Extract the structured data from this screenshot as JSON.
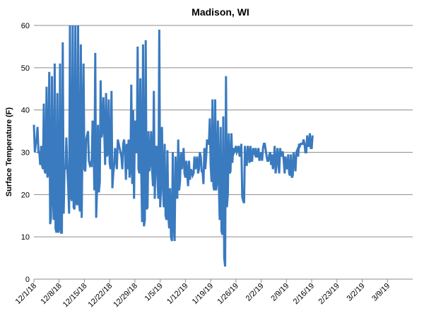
{
  "chart_data": {
    "type": "line",
    "title": "Madison, WI",
    "ylabel": "Surface Temperature (F)",
    "xlabel": "",
    "ylim": [
      0,
      60
    ],
    "yticks": [
      0,
      10,
      20,
      30,
      40,
      50,
      60
    ],
    "xlim": [
      "12/1/18",
      "3/15/19"
    ],
    "xticks": [
      "12/1/18",
      "12/8/18",
      "12/15/18",
      "12/22/18",
      "12/29/18",
      "1/5/19",
      "1/12/19",
      "1/19/19",
      "1/26/19",
      "2/2/19",
      "2/9/19",
      "2/16/19",
      "2/23/19",
      "3/2/19",
      "3/9/19"
    ],
    "grid": true,
    "legend": "none",
    "colors": {
      "series": "#3a7abf",
      "grid": "#8c8c8c"
    },
    "series": [
      {
        "name": "",
        "step": "1/4 day",
        "values": [
          36.5,
          30,
          32,
          33,
          36,
          30,
          30,
          27,
          31.5,
          27,
          26,
          41.5,
          25.5,
          25,
          45.5,
          24,
          25.5,
          49,
          13,
          14.5,
          48,
          20,
          14,
          51,
          12,
          11,
          44,
          11,
          12,
          51,
          11,
          11,
          56,
          15.5,
          26.5,
          26,
          33.5,
          26,
          22,
          15.5,
          60,
          19.5,
          18.5,
          60,
          17,
          16.5,
          60,
          18,
          17.5,
          60,
          18.5,
          16,
          55.5,
          14.5,
          35,
          51,
          26,
          25.5,
          33,
          34,
          35,
          28,
          27,
          27.5,
          26.5,
          37.5,
          35,
          21,
          53.5,
          14.5,
          21,
          36.5,
          20.5,
          23,
          47,
          33.5,
          35,
          43,
          35,
          27,
          44,
          29,
          30,
          42.5,
          27.5,
          26,
          44.5,
          21.5,
          25,
          27,
          31,
          29,
          26,
          33,
          32,
          31,
          30,
          29,
          26,
          32,
          33,
          30,
          23.5,
          32,
          26,
          33,
          24,
          26,
          46,
          22.5,
          40,
          19,
          37.5,
          30,
          30,
          55,
          26,
          25,
          47.5,
          25.5,
          13.5,
          55.5,
          12.5,
          14,
          56.5,
          16.5,
          17,
          35,
          25.5,
          28,
          35,
          26,
          22,
          44.5,
          19,
          31,
          31.5,
          24,
          19,
          59,
          17,
          22,
          36,
          22,
          17,
          32,
          15,
          14,
          30.5,
          15,
          12,
          21.5,
          10,
          9,
          30,
          13,
          9,
          29,
          22,
          19,
          33,
          21,
          23,
          30,
          26,
          28,
          31,
          25,
          24,
          28,
          24.5,
          22,
          28,
          23.5,
          26,
          25.5,
          24.5,
          25,
          29,
          26,
          27,
          29,
          25,
          26,
          30,
          29,
          25.5,
          25.5,
          22.5,
          31,
          26,
          29,
          33,
          32,
          32,
          38,
          27,
          23,
          42.5,
          22,
          21,
          42.5,
          21,
          23,
          37.5,
          23,
          14,
          36,
          11.5,
          10.5,
          38.5,
          5,
          3,
          48,
          17,
          20,
          34.5,
          25,
          25.5,
          34.5,
          27.5,
          31,
          30,
          30.5,
          31.5,
          30,
          30.5,
          31.5,
          29,
          29.5,
          32,
          19.5,
          18.5,
          18,
          31.5,
          27,
          27,
          31.5,
          30,
          27.5,
          31.5,
          28,
          28,
          31,
          30,
          29.5,
          31,
          29,
          29,
          31,
          28,
          29,
          30,
          28,
          31,
          32,
          32,
          30.5,
          29,
          28,
          28,
          29.5,
          30,
          27,
          29.5,
          26,
          27.5,
          31.5,
          25,
          27,
          31,
          28,
          25,
          31,
          29,
          30,
          30,
          28,
          25,
          29,
          26.5,
          26,
          29.5,
          25,
          24.5,
          29.5,
          24,
          24.5,
          30,
          28,
          25.5,
          30,
          30.5,
          29,
          32,
          31.5,
          32,
          32,
          32,
          33,
          32,
          30,
          30,
          34,
          31.5,
          31.5,
          34.5,
          31,
          31,
          34
        ]
      }
    ]
  }
}
